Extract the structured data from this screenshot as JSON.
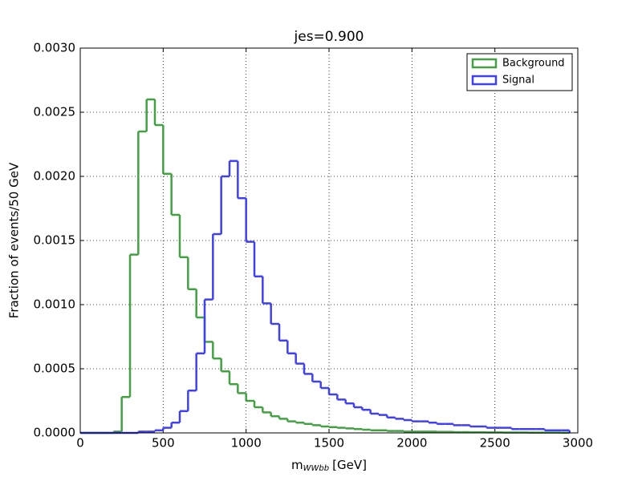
{
  "chart_data": {
    "type": "histogram",
    "title": "jes=0.900",
    "xlabel": {
      "symbol": "m",
      "subscript": "WWbb",
      "unit": "[GeV]"
    },
    "ylabel": "Fraction of events/50 GeV",
    "bins": [
      0,
      50,
      100,
      150,
      200,
      250,
      300,
      350,
      400,
      450,
      500,
      550,
      600,
      650,
      700,
      750,
      800,
      850,
      900,
      950,
      1000,
      1050,
      1100,
      1150,
      1200,
      1250,
      1300,
      1350,
      1400,
      1450,
      1500,
      1550,
      1600,
      1650,
      1700,
      1750,
      1800,
      1850,
      1900,
      1950,
      2000,
      2050,
      2100,
      2150,
      2200,
      2250,
      2300,
      2350,
      2400,
      2450,
      2500,
      2550,
      2600,
      2650,
      2700,
      2750,
      2800,
      2850,
      2900,
      2950
    ],
    "series": [
      {
        "name": "Background",
        "color": "#43a043",
        "values": [
          0,
          0,
          0,
          0,
          1e-05,
          0.00028,
          0.00139,
          0.00235,
          0.0026,
          0.0024,
          0.00202,
          0.0017,
          0.00137,
          0.00112,
          0.0009,
          0.00071,
          0.00058,
          0.00048,
          0.00038,
          0.00031,
          0.00025,
          0.0002,
          0.00016,
          0.00013,
          0.00011,
          9e-05,
          8e-05,
          7e-05,
          6e-05,
          5e-05,
          4.5e-05,
          4e-05,
          3.5e-05,
          3e-05,
          2.5e-05,
          2e-05,
          2e-05,
          1.5e-05,
          1.5e-05,
          1e-05,
          1e-05,
          1e-05,
          1e-05,
          8e-06,
          8e-06,
          6e-06,
          6e-06,
          5e-06,
          5e-06,
          4e-06,
          4e-06,
          3e-06,
          3e-06,
          3e-06,
          2e-06,
          2e-06,
          2e-06,
          2e-06,
          1e-06
        ]
      },
      {
        "name": "Signal",
        "color": "#4040f0",
        "values": [
          0,
          0,
          0,
          0,
          0,
          0,
          0,
          1e-05,
          1e-05,
          2e-05,
          4e-05,
          8e-05,
          0.00017,
          0.00033,
          0.00062,
          0.00104,
          0.00155,
          0.002,
          0.00212,
          0.00183,
          0.00149,
          0.00122,
          0.00101,
          0.00085,
          0.00072,
          0.00062,
          0.00054,
          0.00046,
          0.0004,
          0.00035,
          0.0003,
          0.00026,
          0.00023,
          0.0002,
          0.00018,
          0.00015,
          0.00014,
          0.00012,
          0.00011,
          0.0001,
          9e-05,
          9e-05,
          8e-05,
          7e-05,
          7e-05,
          6e-05,
          6e-05,
          5e-05,
          5e-05,
          4e-05,
          4e-05,
          4e-05,
          3e-05,
          3e-05,
          3e-05,
          3e-05,
          2e-05,
          2e-05,
          2e-05
        ]
      }
    ],
    "xlim": [
      0,
      3000
    ],
    "xticks": [
      0,
      500,
      1000,
      1500,
      2000,
      2500,
      3000
    ],
    "ylim": [
      0,
      0.003
    ],
    "yticks": [
      {
        "value": 0,
        "label": "0.0000"
      },
      {
        "value": 0.0005,
        "label": "0.0005"
      },
      {
        "value": 0.001,
        "label": "0.0010"
      },
      {
        "value": 0.0015,
        "label": "0.0015"
      },
      {
        "value": 0.002,
        "label": "0.0020"
      },
      {
        "value": 0.0025,
        "label": "0.0025"
      },
      {
        "value": 0.003,
        "label": "0.0030"
      }
    ],
    "grid": true,
    "legend": "upper right"
  }
}
